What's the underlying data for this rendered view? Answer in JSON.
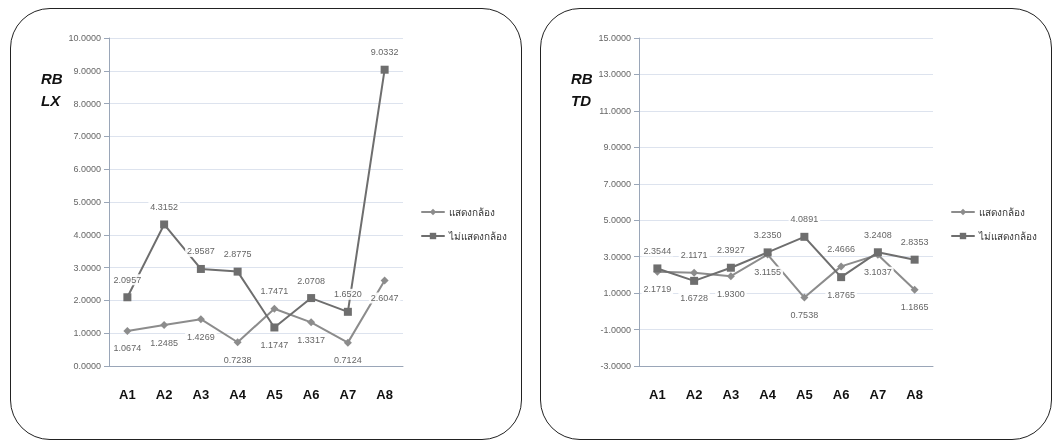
{
  "chart_data": [
    {
      "type": "line",
      "ylabel": "RB\nLX",
      "categories": [
        "A1",
        "A2",
        "A3",
        "A4",
        "A5",
        "A6",
        "A7",
        "A8"
      ],
      "series": [
        {
          "name": "แสดงกล้อง",
          "color": "#8c8c8c",
          "marker": "diamond",
          "values": [
            1.0674,
            1.2485,
            1.4269,
            0.7238,
            1.7471,
            1.3317,
            0.7124,
            2.6047
          ],
          "value_labels": [
            "1.0674",
            "1.2485",
            "1.4269",
            "0.7238",
            "1.7471",
            "1.3317",
            "0.7124",
            "2.6047"
          ]
        },
        {
          "name": "ไม่แสดงกล้อง",
          "color": "#6e6e6e",
          "marker": "square",
          "values": [
            2.0957,
            4.3152,
            2.9587,
            2.8775,
            1.1747,
            2.0708,
            1.652,
            9.0332
          ],
          "value_labels": [
            "2.0957",
            "4.3152",
            "2.9587",
            "2.8775",
            "1.1747",
            "2.0708",
            "1.6520",
            "9.0332"
          ]
        }
      ],
      "ylim": [
        0,
        10
      ],
      "yticks": [
        {
          "value": 0,
          "label": "0.0000"
        },
        {
          "value": 1,
          "label": "1.0000"
        },
        {
          "value": 2,
          "label": "2.0000"
        },
        {
          "value": 3,
          "label": "3.0000"
        },
        {
          "value": 4,
          "label": "4.0000"
        },
        {
          "value": 5,
          "label": "5.0000"
        },
        {
          "value": 6,
          "label": "6.0000"
        },
        {
          "value": 7,
          "label": "7.0000"
        },
        {
          "value": 8,
          "label": "8.0000"
        },
        {
          "value": 9,
          "label": "9.0000"
        },
        {
          "value": 10,
          "label": "10.0000"
        }
      ],
      "grid": "y",
      "legend": "right",
      "line_style": "solid"
    },
    {
      "type": "line",
      "ylabel": "RB\nTD",
      "categories": [
        "A1",
        "A2",
        "A3",
        "A4",
        "A5",
        "A6",
        "A7",
        "A8"
      ],
      "series": [
        {
          "name": "แสดงกล้อง",
          "color": "#8c8c8c",
          "marker": "diamond",
          "values": [
            2.1719,
            2.1171,
            1.93,
            3.1155,
            0.7538,
            2.4666,
            3.1037,
            1.1865
          ],
          "value_labels": [
            "2.1719",
            "2.1171",
            "1.9300",
            "3.1155",
            "0.7538",
            "2.4666",
            "3.1037",
            "1.1865"
          ]
        },
        {
          "name": "ไม่แสดงกล้อง",
          "color": "#6e6e6e",
          "marker": "square",
          "values": [
            2.3544,
            1.6728,
            2.3927,
            3.235,
            4.0891,
            1.8765,
            3.2408,
            2.8353
          ],
          "value_labels": [
            "2.3544",
            "1.6728",
            "2.3927",
            "3.2350",
            "4.0891",
            "1.8765",
            "3.2408",
            "2.8353"
          ]
        }
      ],
      "ylim": [
        -3,
        15
      ],
      "yticks": [
        {
          "value": -3,
          "label": "-3.0000"
        },
        {
          "value": -1,
          "label": "-1.0000"
        },
        {
          "value": 1,
          "label": "1.0000"
        },
        {
          "value": 3,
          "label": "3.0000"
        },
        {
          "value": 5,
          "label": "5.0000"
        },
        {
          "value": 7,
          "label": "7.0000"
        },
        {
          "value": 9,
          "label": "9.0000"
        },
        {
          "value": 11,
          "label": "11.0000"
        },
        {
          "value": 13,
          "label": "13.0000"
        },
        {
          "value": 15,
          "label": "15.0000"
        }
      ],
      "grid": "y",
      "legend": "right",
      "line_style": "solid"
    }
  ]
}
